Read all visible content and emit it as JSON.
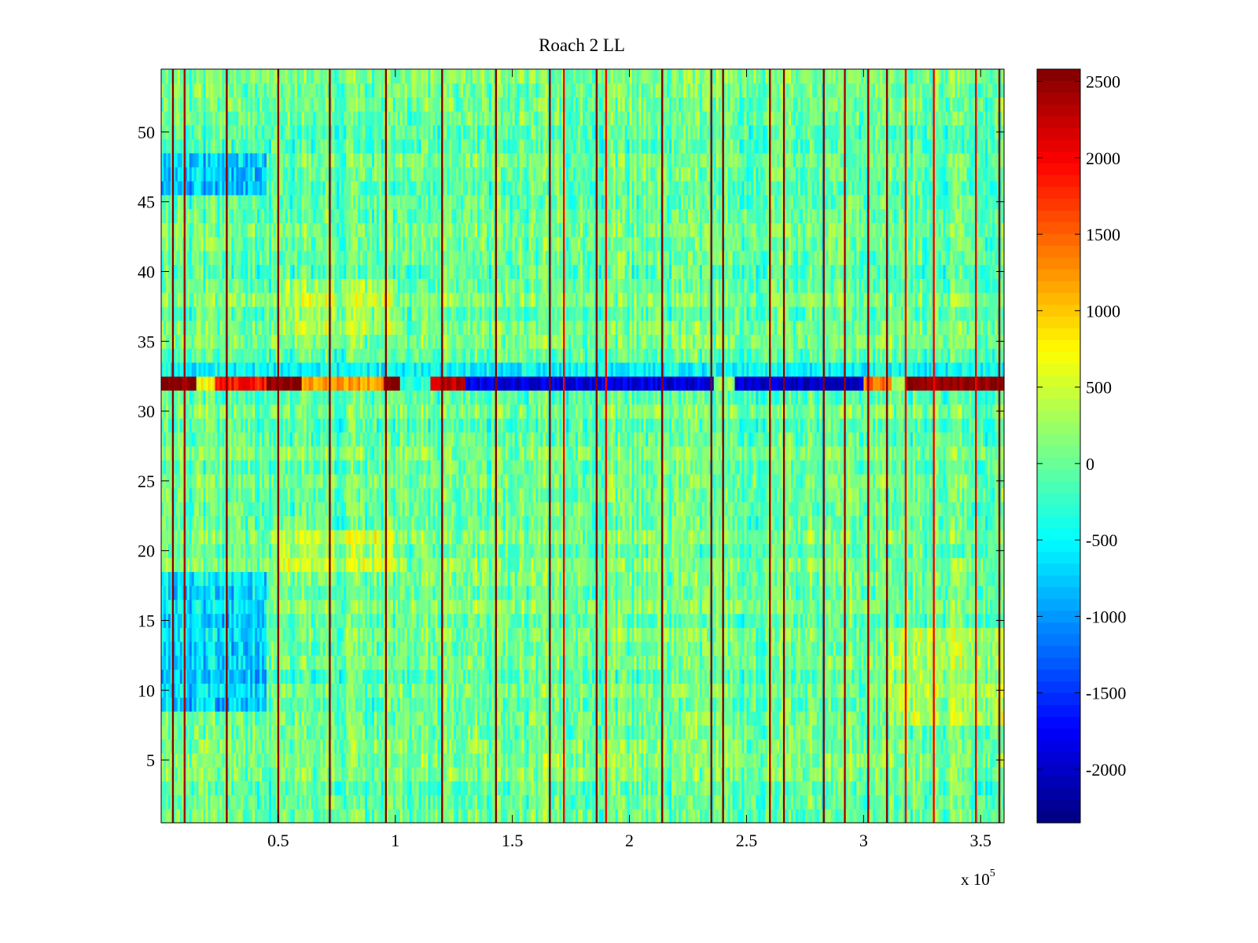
{
  "chart_data": {
    "type": "heatmap",
    "title": "Roach 2 LL",
    "colormap": "jet",
    "x": {
      "range": [
        0,
        360000
      ],
      "ticks": [
        50000,
        100000,
        150000,
        200000,
        250000,
        300000,
        350000
      ],
      "tick_labels": [
        "0.5",
        "1",
        "1.5",
        "2",
        "2.5",
        "3",
        "3.5"
      ],
      "exponent_label": {
        "base": "x 10",
        "exp": "5"
      }
    },
    "y": {
      "range": [
        0.5,
        54.5
      ],
      "ticks": [
        5,
        10,
        15,
        20,
        25,
        30,
        35,
        40,
        45,
        50
      ],
      "tick_labels": [
        "5",
        "10",
        "15",
        "20",
        "25",
        "30",
        "35",
        "40",
        "45",
        "50"
      ]
    },
    "colorbar": {
      "range": [
        -2350,
        2580
      ],
      "ticks": [
        -2000,
        -1500,
        -1000,
        -500,
        0,
        500,
        1000,
        1500,
        2000,
        2500
      ],
      "tick_labels": [
        "-2000",
        "-1500",
        "-1000",
        "-500",
        "0",
        "500",
        "1000",
        "1500",
        "2000",
        "2500"
      ]
    },
    "rows": 54,
    "columns": 360,
    "baseline_value": 0,
    "noise_amplitude": 350,
    "vertical_lines": [
      {
        "x": 5000,
        "value": 2550
      },
      {
        "x": 10000,
        "value": 2400
      },
      {
        "x": 28000,
        "value": 2550
      },
      {
        "x": 50000,
        "value": 2550
      },
      {
        "x": 72000,
        "value": 2550
      },
      {
        "x": 96000,
        "value": 2550
      },
      {
        "x": 120000,
        "value": 2550
      },
      {
        "x": 143000,
        "value": 2550
      },
      {
        "x": 166000,
        "value": 2550
      },
      {
        "x": 172000,
        "value": 2000
      },
      {
        "x": 186000,
        "value": 2550
      },
      {
        "x": 190000,
        "value": 2000
      },
      {
        "x": 214000,
        "value": 2550
      },
      {
        "x": 235000,
        "value": 2550
      },
      {
        "x": 240000,
        "value": 2550
      },
      {
        "x": 260000,
        "value": 2400
      },
      {
        "x": 266000,
        "value": 2550
      },
      {
        "x": 283000,
        "value": 2550
      },
      {
        "x": 292000,
        "value": 2400
      },
      {
        "x": 302000,
        "value": 2400
      },
      {
        "x": 310000,
        "value": 2550
      },
      {
        "x": 318000,
        "value": 2000
      },
      {
        "x": 330000,
        "value": 2000
      },
      {
        "x": 348000,
        "value": 2000
      },
      {
        "x": 358000,
        "value": 2550
      }
    ],
    "special_rows": [
      {
        "row": 32,
        "segments": [
          {
            "x": [
              0,
              15000
            ],
            "value": 2500
          },
          {
            "x": [
              15000,
              23000
            ],
            "value": 700
          },
          {
            "x": [
              23000,
              45000
            ],
            "value": 1900
          },
          {
            "x": [
              45000,
              60000
            ],
            "value": 2550
          },
          {
            "x": [
              60000,
              95000
            ],
            "value": 1200
          },
          {
            "x": [
              95000,
              102000
            ],
            "value": 2550
          },
          {
            "x": [
              102000,
              115000
            ],
            "value": -300
          },
          {
            "x": [
              115000,
              130000
            ],
            "value": 2300
          },
          {
            "x": [
              130000,
              236000
            ],
            "value": -1900
          },
          {
            "x": [
              236000,
              245000
            ],
            "value": 200
          },
          {
            "x": [
              245000,
              300000
            ],
            "value": -2000
          },
          {
            "x": [
              300000,
              312000
            ],
            "value": 1400
          },
          {
            "x": [
              312000,
              318000
            ],
            "value": 300
          },
          {
            "x": [
              318000,
              360000
            ],
            "value": 2500
          }
        ]
      },
      {
        "row": 33,
        "base": -500
      }
    ],
    "regional_bias": [
      {
        "x": [
          0,
          45000
        ],
        "rows": [
          9,
          18
        ],
        "value": -700
      },
      {
        "x": [
          0,
          45000
        ],
        "rows": [
          46,
          48
        ],
        "value": -700
      },
      {
        "x": [
          50000,
          100000
        ],
        "rows": [
          19,
          21
        ],
        "value": 350
      },
      {
        "x": [
          50000,
          100000
        ],
        "rows": [
          36,
          39
        ],
        "value": 300
      },
      {
        "x": [
          310000,
          360000
        ],
        "rows": [
          8,
          14
        ],
        "value": 350
      }
    ]
  }
}
